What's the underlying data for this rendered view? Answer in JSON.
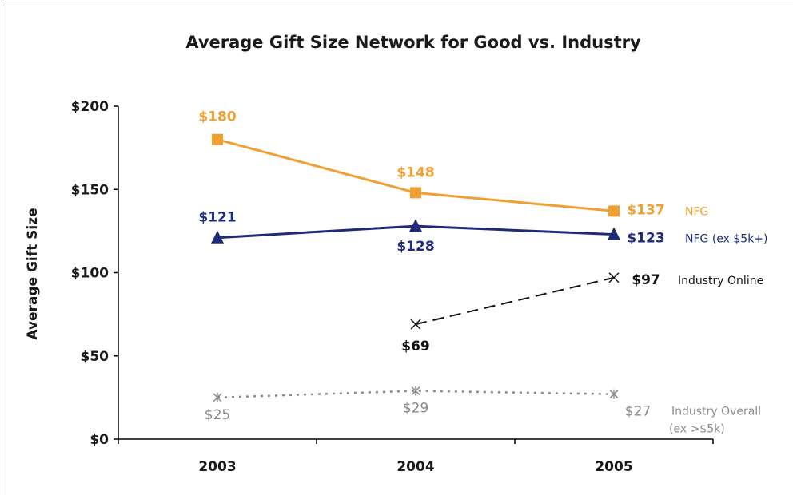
{
  "chart_data": {
    "type": "line",
    "title": "Average Gift Size Network for Good vs. Industry",
    "ylabel": "Average Gift Size",
    "xlabel": "",
    "categories": [
      "2003",
      "2004",
      "2005"
    ],
    "ylim": [
      0,
      200
    ],
    "y_ticks": [
      "$0",
      "$50",
      "$100",
      "$150",
      "$200"
    ],
    "grid": false,
    "legend": "inline-right",
    "series": [
      {
        "name": "NFG",
        "values": [
          180,
          148,
          137
        ],
        "labels": [
          "$180",
          "$148",
          "$137"
        ],
        "color": "#f0a030",
        "marker": "square",
        "style": "solid"
      },
      {
        "name": "NFG (ex $5k+)",
        "values": [
          121,
          128,
          123
        ],
        "labels": [
          "$121",
          "$128",
          "$123"
        ],
        "color": "#1f2a7a",
        "marker": "triangle",
        "style": "solid"
      },
      {
        "name": "Industry Online",
        "values": [
          null,
          69,
          97
        ],
        "labels": [
          "",
          "$69",
          "$97"
        ],
        "color": "#111111",
        "marker": "x",
        "style": "dashed"
      },
      {
        "name": "Industry Overall",
        "name_line2": "(ex >$5k)",
        "values": [
          25,
          29,
          27
        ],
        "labels": [
          "$25",
          "$29",
          "$27"
        ],
        "color": "#8a8a8a",
        "marker": "asterisk",
        "style": "dotted"
      }
    ]
  }
}
